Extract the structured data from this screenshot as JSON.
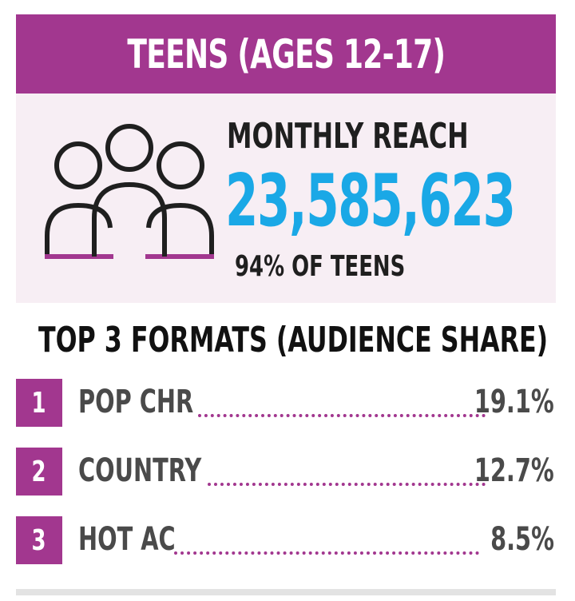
{
  "header": {
    "title": "TEENS (AGES 12-17)"
  },
  "reach": {
    "label": "MONTHLY REACH",
    "value": "23,585,623",
    "percent_text": "94% OF TEENS",
    "icon": "people-group-icon"
  },
  "formats": {
    "heading": "TOP 3 FORMATS (AUDIENCE SHARE)",
    "items": [
      {
        "rank": "1",
        "name": "POP CHR",
        "share": "19.1%"
      },
      {
        "rank": "2",
        "name": "COUNTRY",
        "share": "12.7%"
      },
      {
        "rank": "3",
        "name": "HOT AC",
        "share": "8.5%"
      }
    ]
  },
  "colors": {
    "accent": "#a2378f",
    "highlight": "#1aa8e6",
    "panel_bg": "#f7eef4",
    "text_dark": "#1f1f1f",
    "text_gray": "#4a4a4a"
  }
}
